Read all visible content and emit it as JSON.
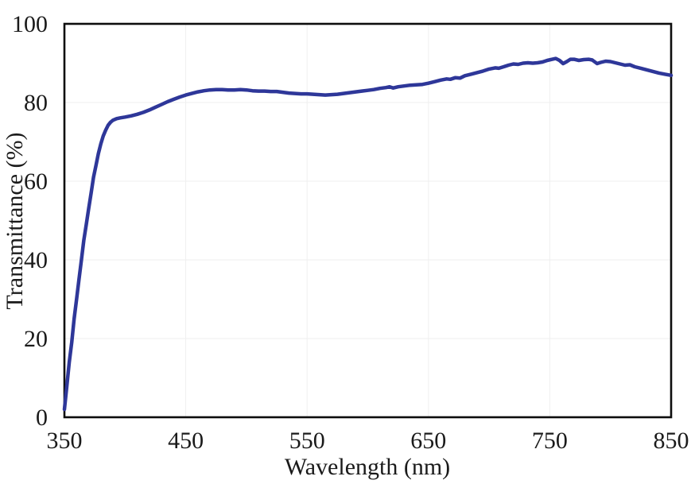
{
  "figure": {
    "background": "#ffffff"
  },
  "chart_data": {
    "type": "line",
    "title": "",
    "xlabel": "Wavelength (nm)",
    "ylabel": "Transmittance (%)",
    "xlim": [
      350,
      850
    ],
    "ylim": [
      0,
      100
    ],
    "x_ticks": [
      350,
      450,
      550,
      650,
      750,
      850
    ],
    "y_ticks": [
      0,
      20,
      40,
      60,
      80,
      100
    ],
    "grid": true,
    "legend_position": "none",
    "colors": {
      "line": "#2e3799",
      "axis": "#0d0d0d",
      "grid": "#efefef",
      "text": "#1a1a1a"
    },
    "series": [
      {
        "name": "Transmittance",
        "color": "#2e3799",
        "stroke_width": 4.5,
        "points": [
          [
            350,
            2
          ],
          [
            352,
            8
          ],
          [
            354,
            14
          ],
          [
            356,
            19
          ],
          [
            358,
            25
          ],
          [
            360,
            30
          ],
          [
            362,
            35
          ],
          [
            364,
            40
          ],
          [
            366,
            45
          ],
          [
            368,
            49
          ],
          [
            370,
            53
          ],
          [
            372,
            57
          ],
          [
            374,
            61
          ],
          [
            376,
            64
          ],
          [
            378,
            67
          ],
          [
            380,
            69.5
          ],
          [
            382,
            71.5
          ],
          [
            384,
            73
          ],
          [
            386,
            74.2
          ],
          [
            388,
            75
          ],
          [
            390,
            75.5
          ],
          [
            393,
            75.9
          ],
          [
            396,
            76.1
          ],
          [
            400,
            76.3
          ],
          [
            405,
            76.6
          ],
          [
            410,
            77
          ],
          [
            415,
            77.5
          ],
          [
            420,
            78.1
          ],
          [
            425,
            78.8
          ],
          [
            430,
            79.5
          ],
          [
            435,
            80.2
          ],
          [
            440,
            80.8
          ],
          [
            445,
            81.4
          ],
          [
            450,
            81.9
          ],
          [
            455,
            82.3
          ],
          [
            460,
            82.7
          ],
          [
            465,
            83
          ],
          [
            470,
            83.2
          ],
          [
            475,
            83.3
          ],
          [
            480,
            83.3
          ],
          [
            485,
            83.2
          ],
          [
            490,
            83.2
          ],
          [
            495,
            83.3
          ],
          [
            500,
            83.2
          ],
          [
            505,
            83
          ],
          [
            510,
            82.9
          ],
          [
            515,
            82.9
          ],
          [
            520,
            82.8
          ],
          [
            525,
            82.8
          ],
          [
            530,
            82.6
          ],
          [
            535,
            82.4
          ],
          [
            540,
            82.3
          ],
          [
            545,
            82.2
          ],
          [
            550,
            82.2
          ],
          [
            555,
            82.1
          ],
          [
            560,
            82
          ],
          [
            565,
            81.9
          ],
          [
            570,
            82
          ],
          [
            575,
            82.1
          ],
          [
            580,
            82.3
          ],
          [
            585,
            82.5
          ],
          [
            590,
            82.7
          ],
          [
            595,
            82.9
          ],
          [
            600,
            83.1
          ],
          [
            605,
            83.3
          ],
          [
            610,
            83.6
          ],
          [
            615,
            83.8
          ],
          [
            618,
            84
          ],
          [
            621,
            83.7
          ],
          [
            625,
            84
          ],
          [
            630,
            84.2
          ],
          [
            635,
            84.4
          ],
          [
            640,
            84.5
          ],
          [
            645,
            84.6
          ],
          [
            650,
            84.9
          ],
          [
            655,
            85.3
          ],
          [
            660,
            85.7
          ],
          [
            665,
            86
          ],
          [
            668,
            85.9
          ],
          [
            672,
            86.3
          ],
          [
            676,
            86.2
          ],
          [
            680,
            86.8
          ],
          [
            685,
            87.2
          ],
          [
            690,
            87.6
          ],
          [
            695,
            88
          ],
          [
            700,
            88.5
          ],
          [
            705,
            88.8
          ],
          [
            708,
            88.7
          ],
          [
            712,
            89.1
          ],
          [
            716,
            89.5
          ],
          [
            720,
            89.8
          ],
          [
            724,
            89.7
          ],
          [
            728,
            90
          ],
          [
            732,
            90.1
          ],
          [
            736,
            90
          ],
          [
            740,
            90.1
          ],
          [
            744,
            90.3
          ],
          [
            748,
            90.7
          ],
          [
            752,
            91
          ],
          [
            755,
            91.2
          ],
          [
            758,
            90.7
          ],
          [
            761,
            89.9
          ],
          [
            764,
            90.4
          ],
          [
            767,
            91
          ],
          [
            770,
            91
          ],
          [
            774,
            90.7
          ],
          [
            778,
            90.9
          ],
          [
            782,
            91
          ],
          [
            785,
            90.8
          ],
          [
            789,
            89.9
          ],
          [
            792,
            90.2
          ],
          [
            796,
            90.5
          ],
          [
            800,
            90.4
          ],
          [
            804,
            90.1
          ],
          [
            808,
            89.8
          ],
          [
            812,
            89.5
          ],
          [
            816,
            89.6
          ],
          [
            820,
            89.1
          ],
          [
            825,
            88.7
          ],
          [
            830,
            88.3
          ],
          [
            835,
            87.9
          ],
          [
            840,
            87.5
          ],
          [
            845,
            87.2
          ],
          [
            850,
            86.9
          ]
        ]
      }
    ]
  }
}
